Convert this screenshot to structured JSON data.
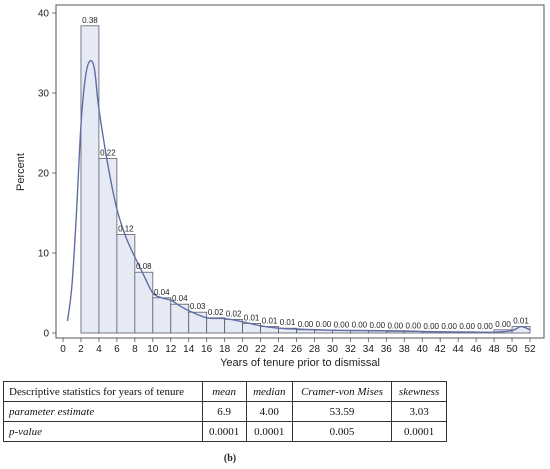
{
  "chart_data": {
    "type": "bar",
    "xlabel": "Years of tenure prior to dismissal",
    "ylabel": "Percent",
    "xlim": [
      0,
      52
    ],
    "ylim": [
      0,
      40
    ],
    "x_ticks": [
      0,
      2,
      4,
      6,
      8,
      10,
      12,
      14,
      16,
      18,
      20,
      22,
      24,
      26,
      28,
      30,
      32,
      34,
      36,
      38,
      40,
      42,
      44,
      46,
      48,
      50,
      52
    ],
    "y_ticks": [
      0,
      10,
      20,
      30,
      40
    ],
    "bin_width": 2,
    "bin_centers": [
      3,
      5,
      7,
      9,
      11,
      13,
      15,
      17,
      19,
      21,
      23,
      25,
      27,
      29,
      31,
      33,
      35,
      37,
      39,
      41,
      43,
      45,
      47,
      49,
      51
    ],
    "values": [
      38.4,
      21.8,
      12.3,
      7.6,
      4.4,
      3.6,
      2.6,
      1.9,
      1.7,
      1.2,
      0.8,
      0.6,
      0.4,
      0.35,
      0.3,
      0.3,
      0.25,
      0.2,
      0.2,
      0.15,
      0.15,
      0.15,
      0.1,
      0.4,
      0.8
    ],
    "data_labels": [
      "0.38",
      "0.22",
      "0.12",
      "0.08",
      "0.04",
      "0.04",
      "0.03",
      "0.02",
      "0.02",
      "0.01",
      "0.01",
      "0.01",
      "0.00",
      "0.00",
      "0.00",
      "0.00",
      "0.00",
      "0.00",
      "0.00",
      "0.00",
      "0.00",
      "0.00",
      "0.00",
      "0.00",
      "0.01"
    ],
    "density_curve": {
      "x": [
        0.5,
        1,
        1.5,
        2,
        2.5,
        3,
        3.5,
        4,
        5,
        6,
        7,
        8,
        9,
        10,
        11,
        12,
        13,
        14,
        16,
        18,
        20,
        22,
        24,
        26,
        30,
        34,
        38,
        42,
        46,
        48,
        50,
        51,
        52
      ],
      "y": [
        1.5,
        6,
        15,
        26,
        32,
        34,
        33,
        28,
        21,
        15.5,
        12,
        9.5,
        7.2,
        5,
        4.4,
        4.1,
        3.4,
        2.8,
        1.9,
        1.8,
        1.4,
        0.9,
        0.6,
        0.5,
        0.35,
        0.3,
        0.25,
        0.15,
        0.1,
        0.1,
        0.3,
        0.8,
        0.4
      ]
    },
    "colors": {
      "bar_fill": "#e6eaf4",
      "bar_stroke": "#5b5b6b",
      "curve": "#5f6ea6"
    },
    "grid": false
  },
  "table": {
    "headers": [
      "Descriptive statistics for years of tenure",
      "mean",
      "median",
      "Cramer-von Mises",
      "skewness"
    ],
    "rows": [
      {
        "label": "parameter estimate",
        "values": [
          "6.9",
          "4.00",
          "53.59",
          "3.03"
        ]
      },
      {
        "label": "p-value",
        "values": [
          "0.0001",
          "0.0001",
          "0.005",
          "0.0001"
        ]
      }
    ]
  },
  "caption": "(b)"
}
